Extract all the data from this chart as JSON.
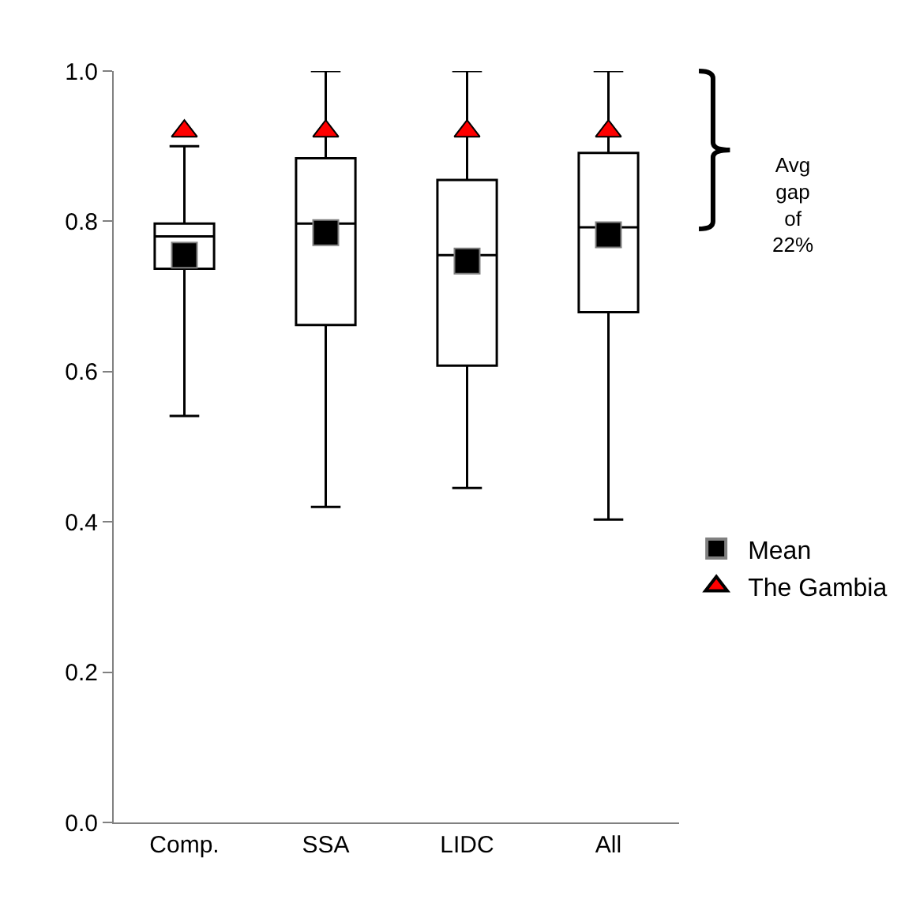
{
  "chart_data": {
    "type": "box",
    "categories": [
      "Comp.",
      "SSA",
      "LIDC",
      "All"
    ],
    "series": [
      {
        "color": "#000000",
        "boxes": [
          {
            "low": 0.541,
            "q1": 0.737,
            "median": 0.78,
            "q3": 0.797,
            "high": 0.9
          },
          {
            "low": 0.42,
            "q1": 0.662,
            "median": 0.797,
            "q3": 0.884,
            "high": 1.0
          },
          {
            "low": 0.445,
            "q1": 0.608,
            "median": 0.755,
            "q3": 0.855,
            "high": 1.0
          },
          {
            "low": 0.403,
            "q1": 0.679,
            "median": 0.792,
            "q3": 0.891,
            "high": 1.0
          }
        ]
      },
      {
        "type": "scatter",
        "name": "Mean",
        "color": "#000000",
        "marker": "square",
        "x": [
          "Comp.",
          "SSA",
          "LIDC",
          "All"
        ],
        "values": [
          0.755,
          0.785,
          0.747,
          0.782
        ]
      },
      {
        "type": "scatter",
        "name": "The Gambia",
        "color": "#ff0000",
        "marker": "triangle",
        "x": [
          "Comp.",
          "SSA",
          "LIDC",
          "All"
        ],
        "values": [
          0.92,
          0.92,
          0.92,
          0.92
        ]
      }
    ],
    "ylim": [
      0,
      1
    ],
    "yticks": [
      {
        "value": 0,
        "label": "0.0"
      },
      {
        "value": 0.2,
        "label": "0.2"
      },
      {
        "value": 0.4,
        "label": "0.4"
      },
      {
        "value": 0.6,
        "label": "0.6"
      },
      {
        "value": 0.8,
        "label": "0.8"
      },
      {
        "value": 1,
        "label": "1.0"
      }
    ],
    "annotations": [
      "Avg gap of 22%"
    ],
    "legend": "right"
  }
}
